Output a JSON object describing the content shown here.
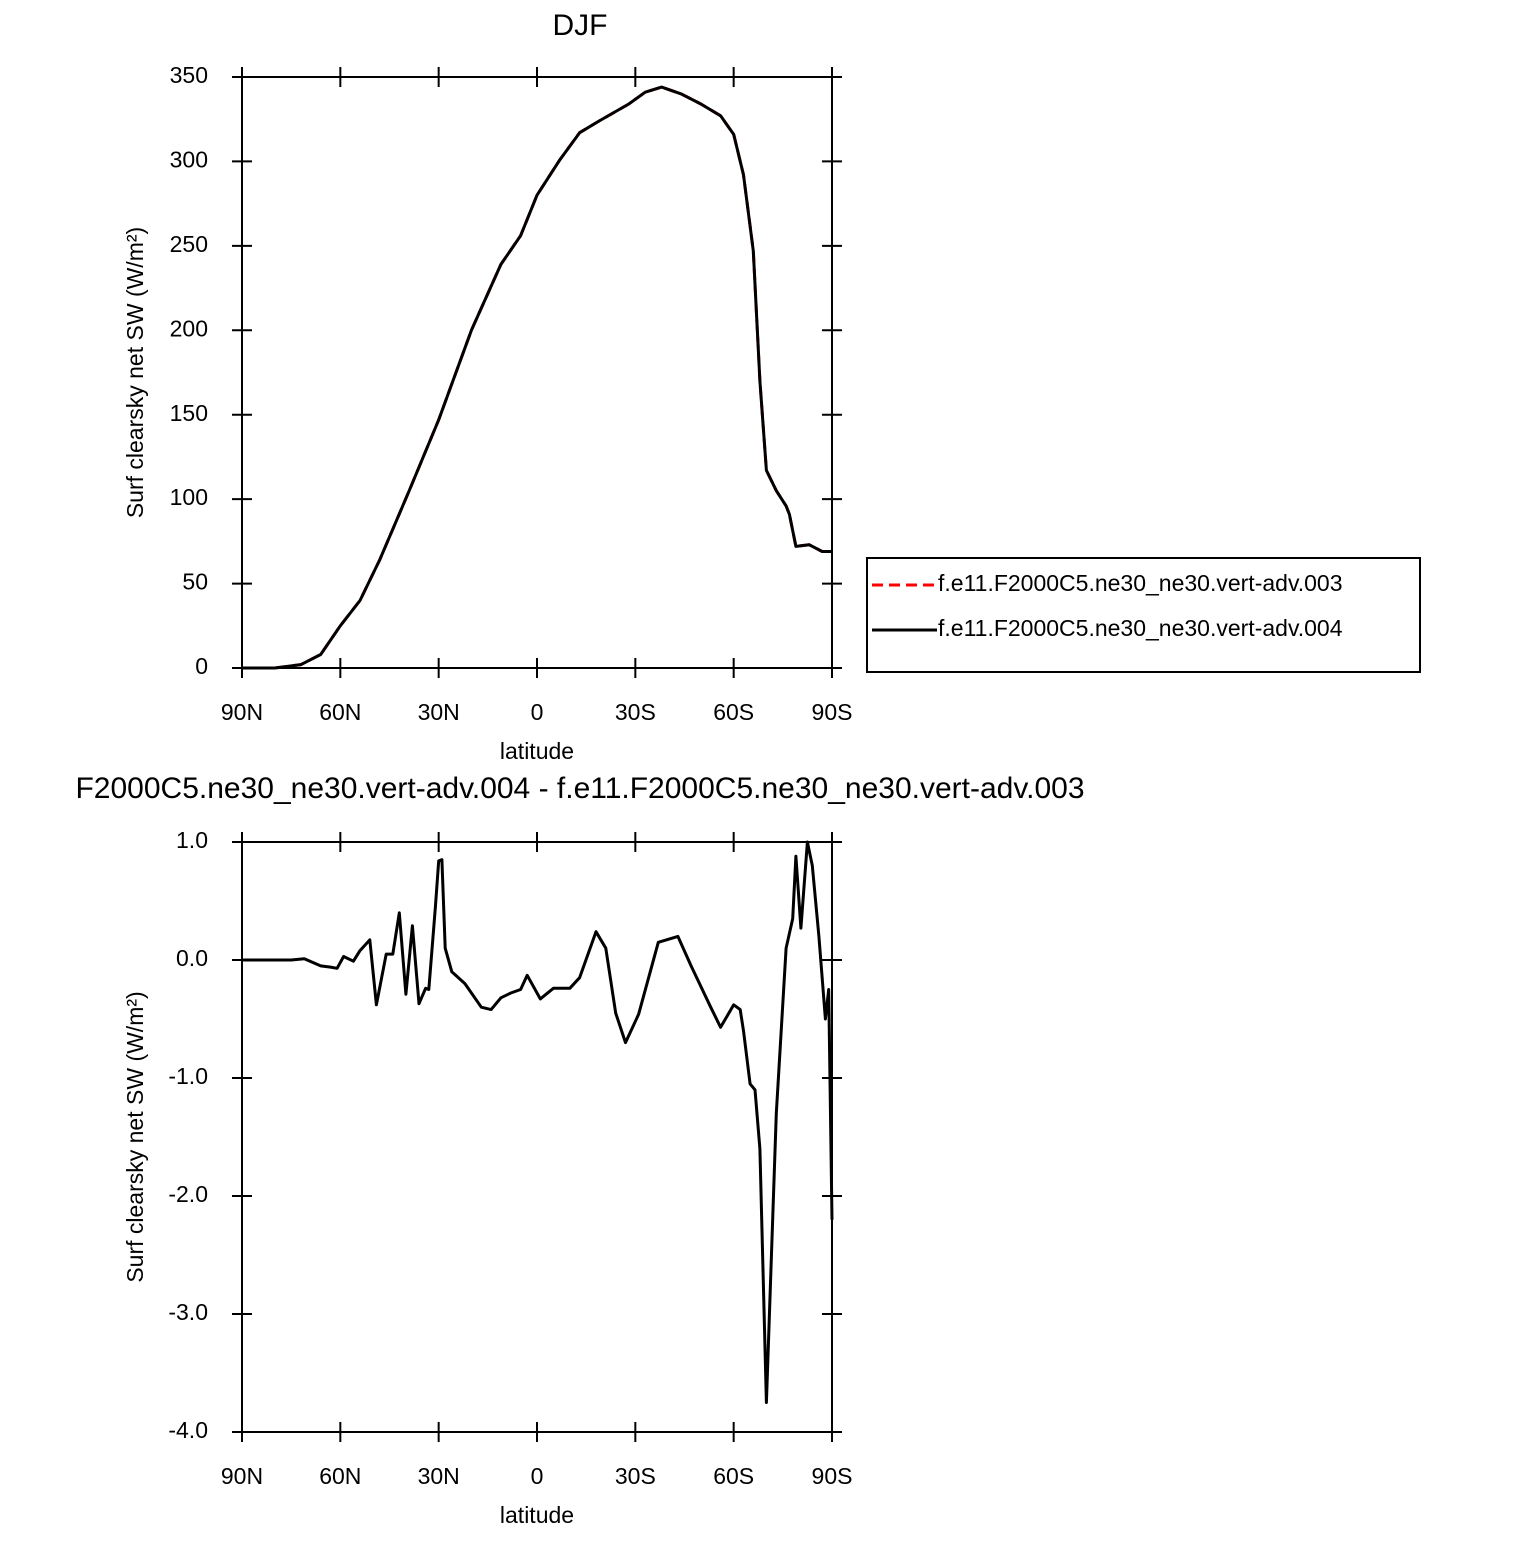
{
  "chart_data": [
    {
      "type": "line",
      "title": "DJF",
      "x_label": "latitude",
      "y_label": "Surf clearsky net SW (W/m²)",
      "x": [
        90,
        80,
        72,
        66,
        60,
        54,
        48,
        39,
        30,
        20,
        11,
        5,
        0,
        -7,
        -13,
        -19,
        -28,
        -33,
        -38,
        -44,
        -50,
        -56,
        -60,
        -63,
        -66,
        -68,
        -70,
        -73,
        -76,
        -77,
        -79,
        -83,
        -87,
        -90
      ],
      "series": [
        {
          "name": "f.e11.F2000C5.ne30_ne30.vert-adv.003",
          "color": "#ff0000",
          "dash": true,
          "values": [
            0,
            0,
            2,
            8,
            25,
            40,
            64,
            105,
            147,
            200,
            239,
            256,
            280,
            301,
            317,
            324,
            334,
            341,
            344,
            340,
            334,
            327,
            316,
            292,
            247,
            170,
            117,
            105,
            96,
            91,
            72,
            73,
            69,
            69
          ]
        },
        {
          "name": "f.e11.F2000C5.ne30_ne30.vert-adv.004",
          "color": "#000000",
          "dash": false,
          "values": [
            0,
            0,
            2,
            8,
            25,
            40,
            64,
            105,
            147,
            200,
            239,
            256,
            280,
            301,
            317,
            324,
            334,
            341,
            344,
            340,
            334,
            327,
            316,
            292,
            247,
            170,
            117,
            105,
            96,
            91,
            72,
            73,
            69,
            69
          ]
        }
      ],
      "xlim": [
        90,
        -90
      ],
      "xticks": [
        {
          "value": 90,
          "label": "90N"
        },
        {
          "value": 60,
          "label": "60N"
        },
        {
          "value": 30,
          "label": "30N"
        },
        0,
        {
          "value": -30,
          "label": "30S"
        },
        {
          "value": -60,
          "label": "60S"
        },
        {
          "value": -90,
          "label": "90S"
        }
      ],
      "ylim": [
        0,
        350
      ],
      "yticks": [
        0,
        50,
        100,
        150,
        200,
        250,
        300,
        350
      ],
      "legend": "right"
    },
    {
      "type": "line",
      "title": "F2000C5.ne30_ne30.vert-adv.004 - f.e11.F2000C5.ne30_ne30.vert-adv.003",
      "x_label": "latitude",
      "y_label": "Surf clearsky net SW (W/m²)",
      "x": [
        90,
        75,
        71,
        66,
        63,
        61,
        59,
        56,
        54,
        51,
        49,
        46,
        44,
        42,
        40,
        38,
        36,
        34,
        33,
        31,
        30,
        29,
        28,
        26,
        22,
        17,
        14,
        11,
        8,
        5,
        3,
        -1,
        -5,
        -10,
        -13,
        -18,
        -21,
        -24,
        -27,
        -31,
        -37,
        -43,
        -47,
        -53,
        -56,
        -60,
        -62,
        -63,
        -65,
        -66.5,
        -68,
        -70,
        -73,
        -76,
        -78,
        -79,
        -80.5,
        -82.5,
        -84,
        -86,
        -88,
        -89,
        -90
      ],
      "values": [
        0,
        0,
        0.01,
        -0.05,
        -0.06,
        -0.07,
        0.03,
        -0.01,
        0.08,
        0.17,
        -0.38,
        0.05,
        0.05,
        0.4,
        -0.29,
        0.29,
        -0.37,
        -0.24,
        -0.25,
        0.45,
        0.84,
        0.85,
        0.1,
        -0.1,
        -0.2,
        -0.4,
        -0.42,
        -0.32,
        -0.28,
        -0.25,
        -0.13,
        -0.33,
        -0.24,
        -0.24,
        -0.15,
        0.24,
        0.1,
        -0.45,
        -0.7,
        -0.46,
        0.15,
        0.2,
        -0.05,
        -0.4,
        -0.57,
        -0.38,
        -0.42,
        -0.6,
        -1.05,
        -1.1,
        -1.6,
        -3.75,
        -1.3,
        0.1,
        0.35,
        0.88,
        0.27,
        1.0,
        0.8,
        0.2,
        -0.5,
        -0.25,
        -2.2
      ],
      "color": "#000000",
      "xlim": [
        90,
        -90
      ],
      "xticks": [
        {
          "value": 90,
          "label": "90N"
        },
        {
          "value": 60,
          "label": "60N"
        },
        {
          "value": 30,
          "label": "30N"
        },
        0,
        {
          "value": -30,
          "label": "30S"
        },
        {
          "value": -60,
          "label": "60S"
        },
        {
          "value": -90,
          "label": "90S"
        }
      ],
      "ylim": [
        -4,
        1
      ],
      "yticks": [
        {
          "value": -4,
          "label": "-4.0"
        },
        {
          "value": -3,
          "label": "-3.0"
        },
        {
          "value": -2,
          "label": "-2.0"
        },
        {
          "value": -1,
          "label": "-1.0"
        },
        {
          "value": 0,
          "label": "0.0"
        },
        {
          "value": 1,
          "label": "1.0"
        }
      ]
    }
  ]
}
